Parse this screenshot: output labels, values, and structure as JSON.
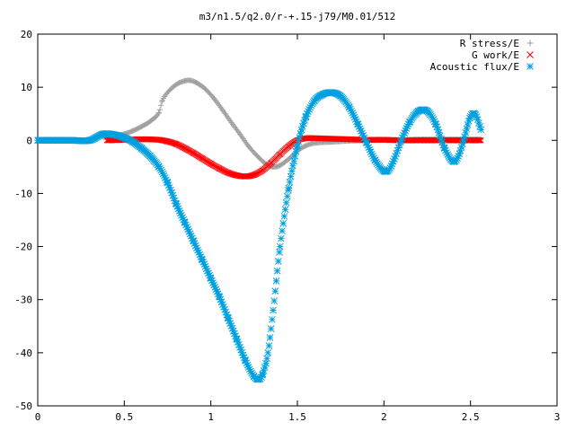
{
  "chart_data": {
    "type": "scatter",
    "title": "m3/n1.5/q2.0/r-+.15-j79/M0.01/512",
    "xlabel": "",
    "ylabel": "",
    "xlim": [
      0,
      3
    ],
    "ylim": [
      -50,
      20
    ],
    "xticks": [
      "0",
      "0.5",
      "1",
      "1.5",
      "2",
      "2.5",
      "3"
    ],
    "yticks": [
      "20",
      "10",
      "0",
      "-10",
      "-20",
      "-30",
      "-40",
      "-50"
    ],
    "grid": false,
    "legend_position": "top-right",
    "series": [
      {
        "name": "R stress/E",
        "marker": "plus",
        "color": "#a0a0a0",
        "x": [
          0.38,
          0.45,
          0.5,
          0.55,
          0.6,
          0.65,
          0.7,
          0.72,
          0.75,
          0.8,
          0.85,
          0.88,
          0.92,
          0.97,
          1.02,
          1.07,
          1.12,
          1.17,
          1.22,
          1.27,
          1.32,
          1.36,
          1.4,
          1.45,
          1.5,
          1.55,
          1.6,
          1.7,
          1.8,
          1.9,
          2.0,
          2.1,
          2.2,
          2.3,
          2.4,
          2.5,
          2.56
        ],
        "y": [
          0.5,
          0.8,
          1.2,
          1.8,
          2.6,
          3.6,
          5.2,
          7.5,
          9.0,
          10.5,
          11.2,
          11.3,
          10.8,
          9.6,
          7.8,
          5.6,
          3.3,
          1.1,
          -1.2,
          -3.0,
          -4.5,
          -5.0,
          -4.7,
          -3.5,
          -2.0,
          -1.0,
          -0.5,
          -0.3,
          -0.1,
          0.0,
          0.1,
          0.1,
          0.2,
          0.2,
          0.2,
          0.2,
          0.2
        ]
      },
      {
        "name": "G work/E",
        "marker": "cross",
        "color": "#ff0000",
        "x": [
          0.4,
          0.5,
          0.6,
          0.7,
          0.75,
          0.8,
          0.85,
          0.9,
          0.95,
          1.0,
          1.05,
          1.1,
          1.15,
          1.2,
          1.25,
          1.3,
          1.35,
          1.4,
          1.45,
          1.5,
          1.55,
          1.6,
          1.7,
          1.8,
          1.9,
          2.0,
          2.1,
          2.2,
          2.3,
          2.4,
          2.5,
          2.56
        ],
        "y": [
          0.0,
          0.1,
          0.2,
          0.1,
          -0.2,
          -0.7,
          -1.5,
          -2.4,
          -3.4,
          -4.4,
          -5.3,
          -6.1,
          -6.6,
          -6.8,
          -6.5,
          -5.6,
          -4.2,
          -2.6,
          -1.1,
          0.0,
          0.4,
          0.4,
          0.3,
          0.2,
          0.1,
          0.1,
          0.0,
          0.0,
          0.0,
          0.0,
          0.0,
          0.0
        ]
      },
      {
        "name": "Acoustic flux/E",
        "marker": "star",
        "color": "#00a0e0",
        "x": [
          0.0,
          0.1,
          0.2,
          0.3,
          0.38,
          0.45,
          0.5,
          0.55,
          0.6,
          0.65,
          0.7,
          0.75,
          0.8,
          0.85,
          0.9,
          0.95,
          1.0,
          1.05,
          1.1,
          1.15,
          1.2,
          1.25,
          1.28,
          1.3,
          1.33,
          1.36,
          1.4,
          1.45,
          1.5,
          1.55,
          1.6,
          1.65,
          1.7,
          1.75,
          1.8,
          1.85,
          1.9,
          1.95,
          2.0,
          2.03,
          2.06,
          2.1,
          2.15,
          2.2,
          2.25,
          2.3,
          2.35,
          2.4,
          2.43,
          2.46,
          2.5,
          2.53,
          2.56
        ],
        "y": [
          0.0,
          0.0,
          0.0,
          0.0,
          1.2,
          1.0,
          0.5,
          -0.3,
          -1.5,
          -3.0,
          -5.0,
          -8.0,
          -12.0,
          -15.5,
          -19.0,
          -22.5,
          -26.0,
          -29.5,
          -33.5,
          -37.5,
          -41.5,
          -44.5,
          -45.0,
          -44.0,
          -40.0,
          -32.0,
          -20.0,
          -9.0,
          -1.0,
          4.5,
          7.5,
          8.7,
          9.0,
          8.3,
          6.2,
          3.0,
          -0.5,
          -3.8,
          -5.8,
          -5.5,
          -3.5,
          0.0,
          3.5,
          5.5,
          5.5,
          3.0,
          -1.5,
          -4.0,
          -3.0,
          0.0,
          4.5,
          4.8,
          2.0
        ]
      }
    ]
  }
}
